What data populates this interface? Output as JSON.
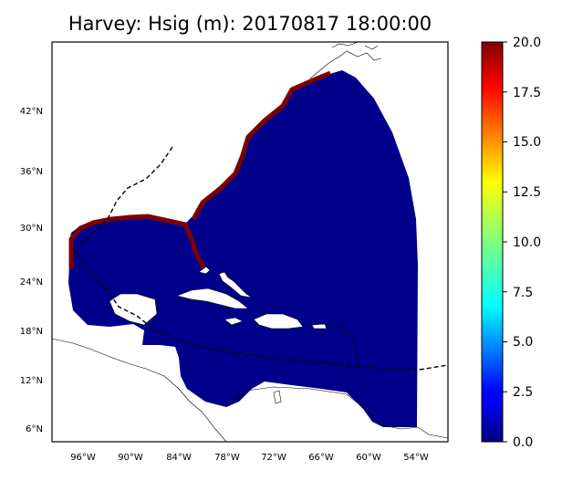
{
  "title": "Harvey: Hsig (m): 20170817 18:00:00",
  "map": {
    "lat_ticks": [
      "42°N",
      "36°N",
      "30°N",
      "24°N",
      "18°N",
      "12°N",
      "6°N"
    ],
    "lon_ticks": [
      "96°W",
      "90°W",
      "84°W",
      "78°W",
      "72°W",
      "66°W",
      "60°W",
      "54°W"
    ],
    "field_color": "#00008b",
    "coast_high_color": "#7f0000",
    "track_style": "dashed"
  },
  "colorbar": {
    "ticks": [
      "20.0",
      "17.5",
      "15.0",
      "12.5",
      "10.0",
      "7.5",
      "5.0",
      "2.5",
      "0.0"
    ],
    "min": 0,
    "max": 20,
    "colormap": "jet"
  }
}
